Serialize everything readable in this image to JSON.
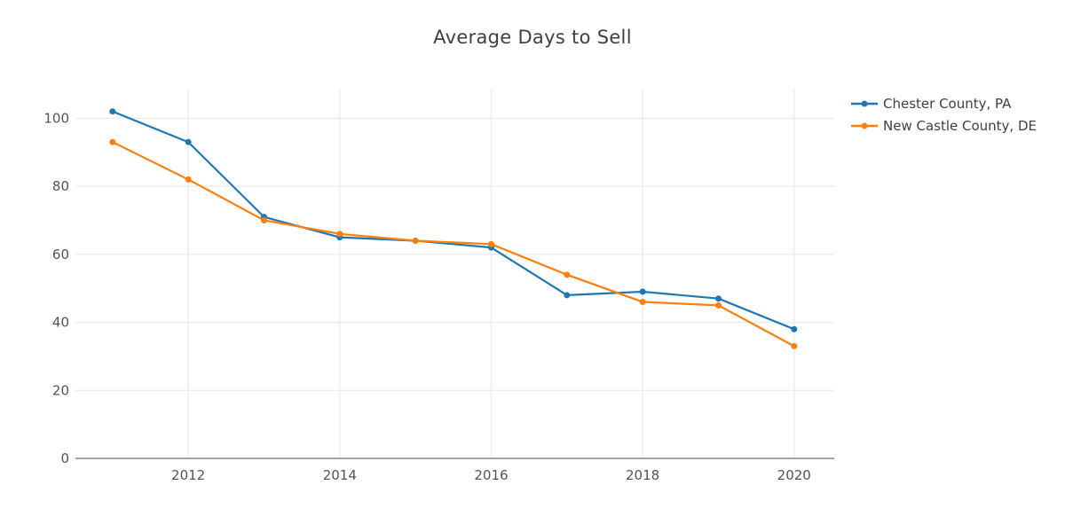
{
  "style": {
    "grid_color": "#ececec",
    "axis_line_color": "#a3a3a3",
    "tick_color": "#545454",
    "title_color": "#404040",
    "legend_text_color": "#404040",
    "background": "#ffffff"
  },
  "chart_data": {
    "type": "line",
    "title": "Average Days to Sell",
    "xlabel": "",
    "ylabel": "",
    "x": [
      2011,
      2012,
      2013,
      2014,
      2015,
      2016,
      2017,
      2018,
      2019,
      2020
    ],
    "series": [
      {
        "name": "Chester County, PA",
        "color": "#1f77b4",
        "values": [
          102,
          93,
          71,
          65,
          64,
          62,
          48,
          49,
          47,
          38
        ]
      },
      {
        "name": "New Castle County, DE",
        "color": "#ff7f0e",
        "values": [
          93,
          82,
          70,
          66,
          64,
          63,
          54,
          46,
          45,
          33
        ]
      }
    ],
    "xticks": [
      2012,
      2014,
      2016,
      2018,
      2020
    ],
    "yticks": [
      0,
      20,
      40,
      60,
      80,
      100
    ],
    "xlim": [
      2010.51,
      2020.53
    ],
    "ylim": [
      0,
      108.7
    ],
    "grid": true,
    "marker": "circle",
    "legend_position": "right"
  }
}
